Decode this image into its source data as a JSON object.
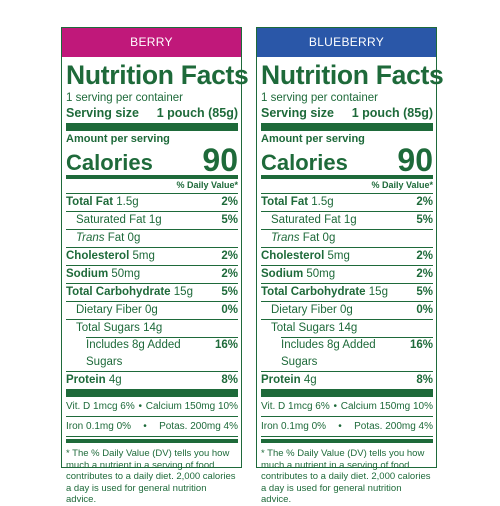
{
  "labels": [
    {
      "flavor": "BERRY",
      "flavor_color": "#c0187a",
      "title": "Nutrition Facts",
      "servings_per_container": "1 serving per container",
      "serving_size_label": "Serving size",
      "serving_size_value": "1 pouch (85g)",
      "amount_per_serving": "Amount per serving",
      "calories_label": "Calories",
      "calories_value": "90",
      "daily_value_header": "% Daily Value*",
      "total_fat_label": "Total Fat",
      "total_fat_amount": "1.5g",
      "total_fat_pct": "2%",
      "sat_fat_label": "Saturated Fat 1g",
      "sat_fat_pct": "5%",
      "trans_fat_label": "Trans",
      "trans_fat_amount": "Fat 0g",
      "cholesterol_label": "Cholesterol",
      "cholesterol_amount": "5mg",
      "cholesterol_pct": "2%",
      "sodium_label": "Sodium",
      "sodium_amount": "50mg",
      "sodium_pct": "2%",
      "carb_label": "Total Carbohydrate",
      "carb_amount": "15g",
      "carb_pct": "5%",
      "fiber_label": "Dietary Fiber 0g",
      "fiber_pct": "0%",
      "sugars_label": "Total Sugars 14g",
      "added_sugars_label": "Includes 8g Added Sugars",
      "added_sugars_pct": "16%",
      "protein_label": "Protein",
      "protein_amount": "4g",
      "protein_pct": "8%",
      "vit_d": "Vit. D 1mcg 6%",
      "calcium": "Calcium 150mg 10%",
      "iron": "Iron 0.1mg 0%",
      "potassium": "Potas. 200mg 4%",
      "bullet": "•",
      "footnote": "* The % Daily Value (DV) tells you how much a nutrient in a serving of food contributes to a daily diet. 2,000 calories a day is used for general nutrition advice."
    },
    {
      "flavor": "BLUEBERRY",
      "flavor_color": "#2a57a8",
      "title": "Nutrition Facts",
      "servings_per_container": "1 serving per container",
      "serving_size_label": "Serving size",
      "serving_size_value": "1 pouch (85g)",
      "amount_per_serving": "Amount per serving",
      "calories_label": "Calories",
      "calories_value": "90",
      "daily_value_header": "% Daily Value*",
      "total_fat_label": "Total Fat",
      "total_fat_amount": "1.5g",
      "total_fat_pct": "2%",
      "sat_fat_label": "Saturated Fat 1g",
      "sat_fat_pct": "5%",
      "trans_fat_label": "Trans",
      "trans_fat_amount": "Fat 0g",
      "cholesterol_label": "Cholesterol",
      "cholesterol_amount": "5mg",
      "cholesterol_pct": "2%",
      "sodium_label": "Sodium",
      "sodium_amount": "50mg",
      "sodium_pct": "2%",
      "carb_label": "Total Carbohydrate",
      "carb_amount": "15g",
      "carb_pct": "5%",
      "fiber_label": "Dietary Fiber 0g",
      "fiber_pct": "0%",
      "sugars_label": "Total Sugars 14g",
      "added_sugars_label": "Includes 8g Added Sugars",
      "added_sugars_pct": "16%",
      "protein_label": "Protein",
      "protein_amount": "4g",
      "protein_pct": "8%",
      "vit_d": "Vit. D 1mcg 6%",
      "calcium": "Calcium 150mg 10%",
      "iron": "Iron 0.1mg 0%",
      "potassium": "Potas. 200mg 4%",
      "bullet": "•",
      "footnote": "* The % Daily Value (DV) tells you how much a nutrient in a serving of food contributes to a daily diet. 2,000 calories a day is used for general nutrition advice."
    }
  ],
  "colors": {
    "label_green": "#1e6a3a"
  }
}
